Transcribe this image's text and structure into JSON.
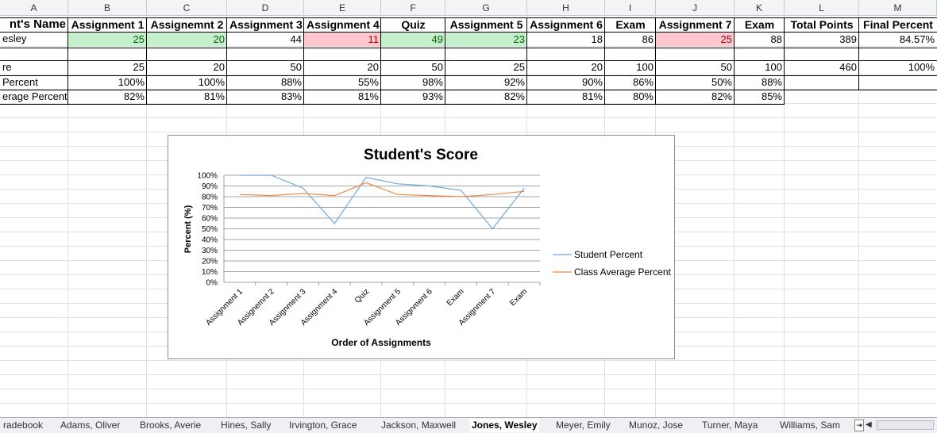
{
  "columns": [
    "A",
    "B",
    "C",
    "D",
    "E",
    "F",
    "G",
    "H",
    "I",
    "J",
    "K",
    "L",
    "M"
  ],
  "header_row": [
    "nt's Name",
    "Assignment 1",
    "Assignemnt 2",
    "Assignment 3",
    "Assignment 4",
    "Quiz",
    "Assignment 5",
    "Assignment 6",
    "Exam",
    "Assignment 7",
    "Exam",
    "Total Points",
    "Final Percent"
  ],
  "student_row": {
    "name": "esley",
    "values": [
      "25",
      "20",
      "44",
      "11",
      "49",
      "23",
      "18",
      "86",
      "25",
      "88",
      "389",
      "84.57%"
    ]
  },
  "possible_row": {
    "label": "re",
    "values": [
      "25",
      "20",
      "50",
      "20",
      "50",
      "25",
      "20",
      "100",
      "50",
      "100",
      "460",
      "100%"
    ]
  },
  "percent_row": {
    "label": "Percent",
    "values": [
      "100%",
      "100%",
      "88%",
      "55%",
      "98%",
      "92%",
      "90%",
      "86%",
      "50%",
      "88%"
    ]
  },
  "avg_row": {
    "label": "erage Percent",
    "values": [
      "82%",
      "81%",
      "83%",
      "81%",
      "93%",
      "82%",
      "81%",
      "80%",
      "82%",
      "85%"
    ]
  },
  "highlight": {
    "green": [
      "B",
      "C",
      "F",
      "G"
    ],
    "red": [
      "E",
      "J"
    ],
    "green_color": "#c6efce",
    "red_color": "#ffc7ce"
  },
  "chart_data": {
    "type": "line",
    "title": "Student's Score",
    "xlabel": "Order of Assignments",
    "ylabel": "Percent (%)",
    "categories": [
      "Assignment 1",
      "Assignemnt 2",
      "Assignment 3",
      "Assignment 4",
      "Quiz",
      "Assignment 5",
      "Assignment 6",
      "Exam",
      "Assignment 7",
      "Exam"
    ],
    "ylim": [
      0,
      100
    ],
    "yticks": [
      "0%",
      "10%",
      "20%",
      "30%",
      "40%",
      "50%",
      "60%",
      "70%",
      "80%",
      "90%",
      "100%"
    ],
    "series": [
      {
        "name": "Student Percent",
        "color": "#6fa8dc",
        "values": [
          100,
          100,
          88,
          55,
          98,
          92,
          90,
          86,
          50,
          88
        ]
      },
      {
        "name": "Class Average Percent",
        "color": "#f0883e",
        "values": [
          82,
          81,
          83,
          81,
          93,
          82,
          81,
          80,
          82,
          85
        ]
      }
    ],
    "grid": true,
    "legend": "right"
  },
  "sheet_tabs": [
    {
      "label": "radebook",
      "active": false
    },
    {
      "label": "Adams, Oliver",
      "active": false
    },
    {
      "label": "Brooks, Averie",
      "active": false
    },
    {
      "label": "Hines, Sally",
      "active": false
    },
    {
      "label": "Irvington, Grace",
      "active": false
    },
    {
      "label": "Jackson, Maxwell",
      "active": false
    },
    {
      "label": "Jones, Wesley",
      "active": true
    },
    {
      "label": "Meyer, Emily",
      "active": false
    },
    {
      "label": "Munoz, Jose",
      "active": false
    },
    {
      "label": "Turner, Maya",
      "active": false
    },
    {
      "label": "Williams, Sam",
      "active": false
    }
  ]
}
